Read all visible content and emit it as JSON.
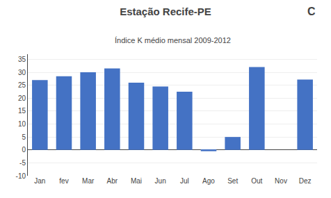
{
  "chart_data": {
    "type": "bar",
    "title": "Estação Recife-PE",
    "subtitle": "Índice K médio mensal 2009-2012",
    "annotations": [
      "C"
    ],
    "categories": [
      "Jan",
      "fev",
      "Mar",
      "Abr",
      "Mai",
      "Jun",
      "Jul",
      "Ago",
      "Set",
      "Out",
      "Nov",
      "Dez"
    ],
    "values": [
      27.0,
      28.5,
      30.0,
      31.5,
      26.0,
      24.5,
      22.5,
      -0.5,
      5.0,
      32.0,
      0.0,
      27.2
    ],
    "color": "#4472C4",
    "ylim": [
      -10,
      37
    ],
    "yticks": [
      -10,
      -5,
      0,
      5,
      10,
      15,
      20,
      25,
      30,
      35
    ],
    "grid": true
  }
}
